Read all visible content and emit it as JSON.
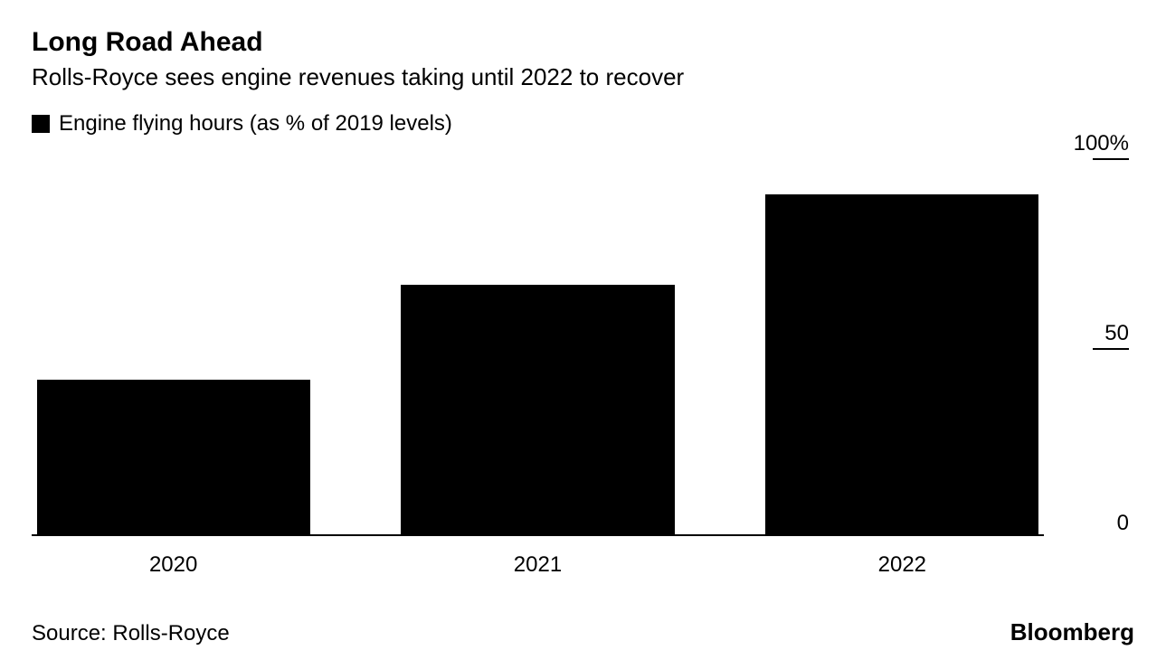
{
  "chart": {
    "type": "bar",
    "title": "Long Road Ahead",
    "subtitle": "Rolls-Royce sees engine revenues taking until 2022 to recover",
    "legend": {
      "swatch_color": "#000000",
      "label": "Engine flying hours (as % of 2019 levels)"
    },
    "categories": [
      "2020",
      "2021",
      "2022"
    ],
    "values": [
      41,
      66,
      90
    ],
    "bar_color": "#000000",
    "background_color": "#ffffff",
    "ylim": [
      0,
      100
    ],
    "yticks": [
      {
        "value": 100,
        "label": "100%"
      },
      {
        "value": 50,
        "label": "50"
      },
      {
        "value": 0,
        "label": "0"
      }
    ],
    "bar_width_pct": 27,
    "bar_gap_pct": 9,
    "axis_color": "#000000",
    "title_fontsize": 30,
    "subtitle_fontsize": 26,
    "label_fontsize": 24
  },
  "footer": {
    "source": "Source: Rolls-Royce",
    "brand": "Bloomberg"
  }
}
